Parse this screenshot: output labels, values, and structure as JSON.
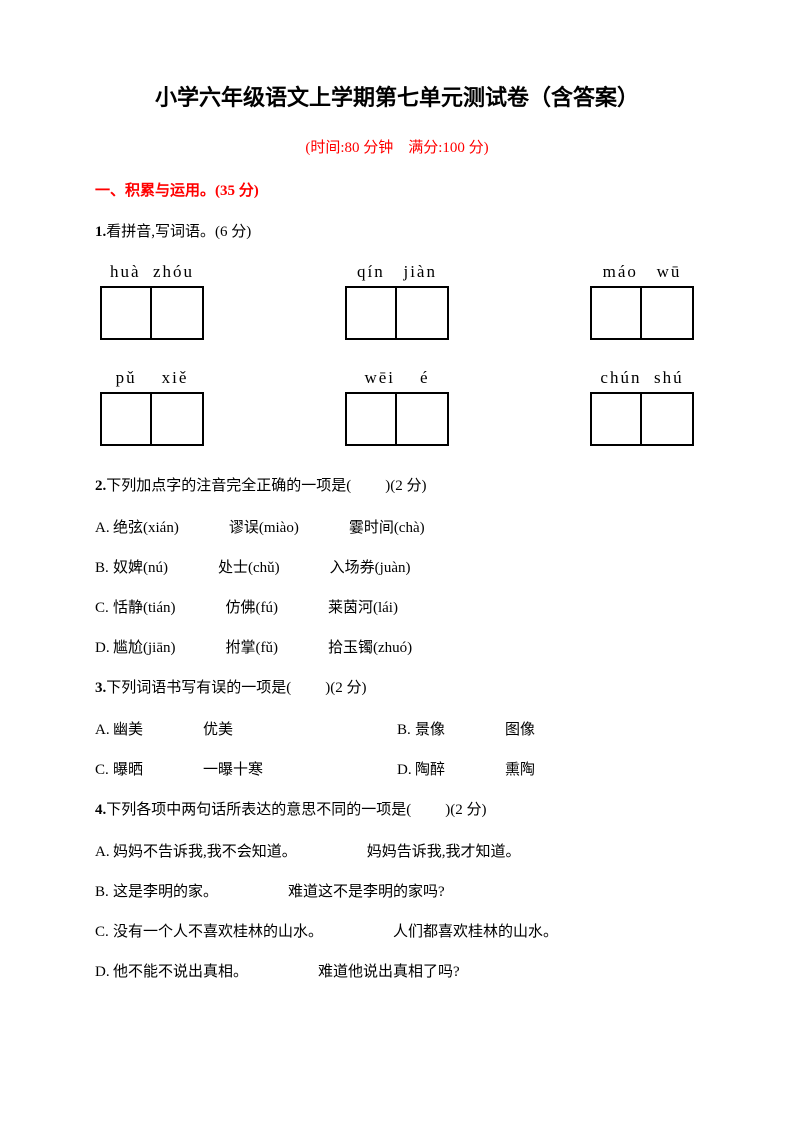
{
  "title": "小学六年级语文上学期第七单元测试卷（含答案）",
  "subtitle": "(时间:80 分钟　满分:100 分)",
  "section1": {
    "header": "一、积累与运用。(35 分)",
    "q1": {
      "num": "1.",
      "text": "看拼音,写词语。(6 分)",
      "row1": [
        {
          "pinyin": "huà  zhóu"
        },
        {
          "pinyin": "qín   jiàn"
        },
        {
          "pinyin": "máo   wū"
        }
      ],
      "row2": [
        {
          "pinyin": "pǔ    xiě"
        },
        {
          "pinyin": "wēi    é"
        },
        {
          "pinyin": "chún  shú"
        }
      ]
    },
    "q2": {
      "num": "2.",
      "text": "下列加点字的注音完全正确的一项是(",
      "blank": "　　",
      "suffix": ")(2 分)",
      "options": [
        {
          "label": "A.",
          "items": [
            "绝弦(xián)",
            "谬误(miào)",
            "霎时间(chà)"
          ]
        },
        {
          "label": "B.",
          "items": [
            "奴婢(nú)",
            "处士(chǔ)",
            "入场券(juàn)"
          ]
        },
        {
          "label": "C.",
          "items": [
            "恬静(tián)",
            "仿佛(fú)",
            "莱茵河(lái)"
          ]
        },
        {
          "label": "D.",
          "items": [
            "尴尬(jiān)",
            "拊掌(fǔ)",
            "拾玉镯(zhuó)"
          ]
        }
      ]
    },
    "q3": {
      "num": "3.",
      "text": "下列词语书写有误的一项是(",
      "blank": "　　",
      "suffix": ")(2 分)",
      "options": [
        {
          "left": {
            "label": "A.",
            "words": [
              "幽美",
              "优美"
            ]
          },
          "right": {
            "label": "B.",
            "words": [
              "景像",
              "图像"
            ]
          }
        },
        {
          "left": {
            "label": "C.",
            "words": [
              "曝晒",
              "一曝十寒"
            ]
          },
          "right": {
            "label": "D.",
            "words": [
              "陶醉",
              "熏陶"
            ]
          }
        }
      ]
    },
    "q4": {
      "num": "4.",
      "text": "下列各项中两句话所表达的意思不同的一项是(",
      "blank": "　　",
      "suffix": ")(2 分)",
      "options": [
        {
          "label": "A.",
          "pair": [
            "妈妈不告诉我,我不会知道。",
            "妈妈告诉我,我才知道。"
          ]
        },
        {
          "label": "B.",
          "pair": [
            "这是李明的家。",
            "难道这不是李明的家吗?"
          ]
        },
        {
          "label": "C.",
          "pair": [
            "没有一个人不喜欢桂林的山水。",
            "人们都喜欢桂林的山水。"
          ]
        },
        {
          "label": "D.",
          "pair": [
            "他不能不说出真相。",
            "难道他说出真相了吗?"
          ]
        }
      ]
    }
  },
  "colors": {
    "text": "#000000",
    "accent": "#ff0000",
    "background": "#ffffff",
    "border": "#000000"
  },
  "typography": {
    "title_fontsize": 22,
    "body_fontsize": 15,
    "pinyin_fontsize": 17
  }
}
